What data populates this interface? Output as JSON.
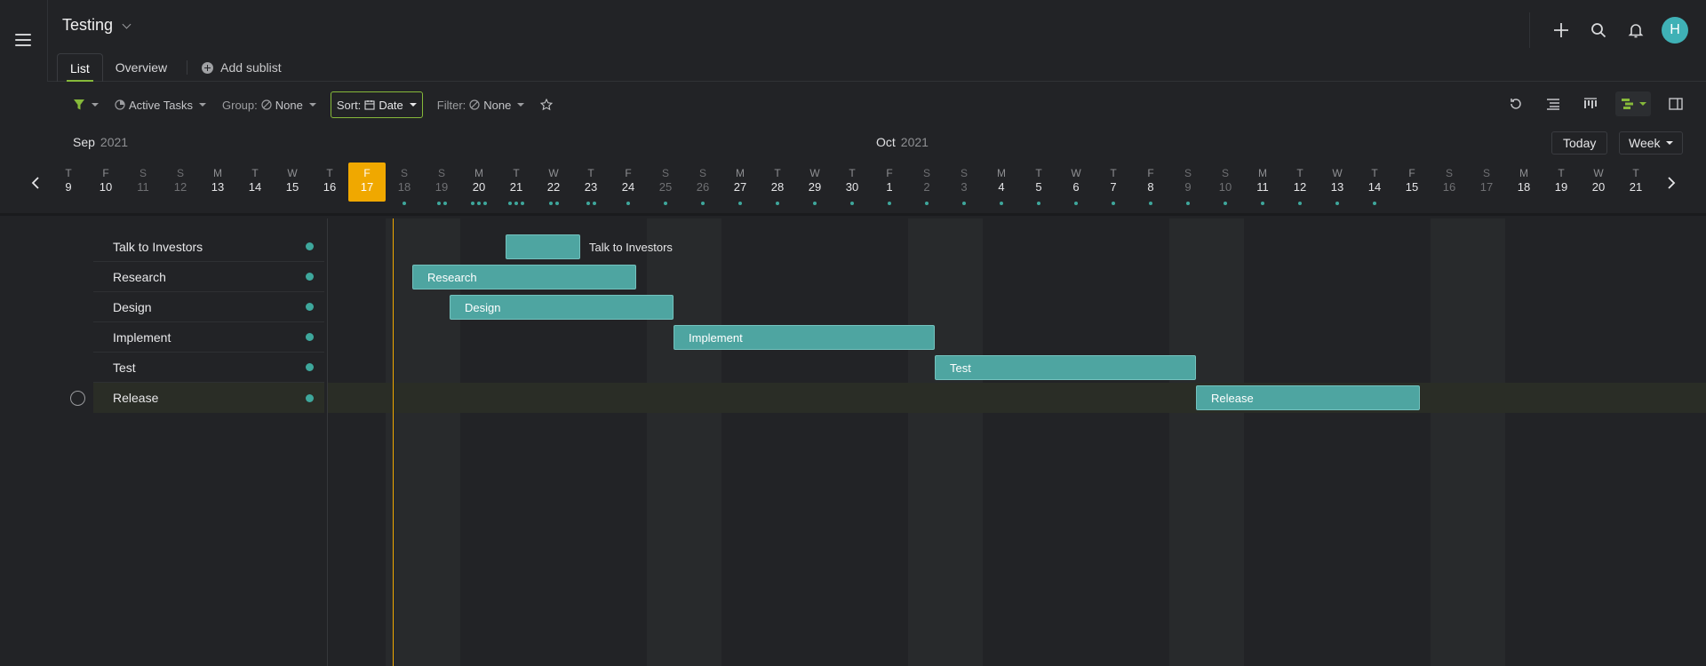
{
  "header": {
    "title": "Testing",
    "tabs": [
      {
        "label": "List",
        "active": true
      },
      {
        "label": "Overview",
        "active": false
      }
    ],
    "add_sublist": "Add sublist",
    "avatar_initial": "H"
  },
  "toolbar": {
    "status": "Active Tasks",
    "group_label": "Group:",
    "group_value": "None",
    "sort_label": "Sort:",
    "sort_value": "Date",
    "filter_label": "Filter:",
    "filter_value": "None"
  },
  "timeline": {
    "months": [
      {
        "name": "Sep",
        "year": "2021"
      },
      {
        "name": "Oct",
        "year": "2021"
      }
    ],
    "today_label": "Today",
    "scale_label": "Week",
    "days": [
      {
        "l": "T",
        "n": "9",
        "weekend": false,
        "dots": 0
      },
      {
        "l": "F",
        "n": "10",
        "weekend": false,
        "dots": 0
      },
      {
        "l": "S",
        "n": "11",
        "weekend": true,
        "dots": 0
      },
      {
        "l": "S",
        "n": "12",
        "weekend": true,
        "dots": 0
      },
      {
        "l": "M",
        "n": "13",
        "weekend": false,
        "dots": 0
      },
      {
        "l": "T",
        "n": "14",
        "weekend": false,
        "dots": 0
      },
      {
        "l": "W",
        "n": "15",
        "weekend": false,
        "dots": 0
      },
      {
        "l": "T",
        "n": "16",
        "weekend": false,
        "dots": 0
      },
      {
        "l": "F",
        "n": "17",
        "weekend": false,
        "dots": 0,
        "today": true
      },
      {
        "l": "S",
        "n": "18",
        "weekend": true,
        "dots": 1
      },
      {
        "l": "S",
        "n": "19",
        "weekend": true,
        "dots": 2
      },
      {
        "l": "M",
        "n": "20",
        "weekend": false,
        "dots": 3
      },
      {
        "l": "T",
        "n": "21",
        "weekend": false,
        "dots": 3
      },
      {
        "l": "W",
        "n": "22",
        "weekend": false,
        "dots": 2
      },
      {
        "l": "T",
        "n": "23",
        "weekend": false,
        "dots": 2
      },
      {
        "l": "F",
        "n": "24",
        "weekend": false,
        "dots": 1
      },
      {
        "l": "S",
        "n": "25",
        "weekend": true,
        "dots": 1
      },
      {
        "l": "S",
        "n": "26",
        "weekend": true,
        "dots": 1
      },
      {
        "l": "M",
        "n": "27",
        "weekend": false,
        "dots": 1
      },
      {
        "l": "T",
        "n": "28",
        "weekend": false,
        "dots": 1
      },
      {
        "l": "W",
        "n": "29",
        "weekend": false,
        "dots": 1
      },
      {
        "l": "T",
        "n": "30",
        "weekend": false,
        "dots": 1
      },
      {
        "l": "F",
        "n": "1",
        "weekend": false,
        "dots": 1
      },
      {
        "l": "S",
        "n": "2",
        "weekend": true,
        "dots": 1
      },
      {
        "l": "S",
        "n": "3",
        "weekend": true,
        "dots": 1
      },
      {
        "l": "M",
        "n": "4",
        "weekend": false,
        "dots": 1
      },
      {
        "l": "T",
        "n": "5",
        "weekend": false,
        "dots": 1
      },
      {
        "l": "W",
        "n": "6",
        "weekend": false,
        "dots": 1
      },
      {
        "l": "T",
        "n": "7",
        "weekend": false,
        "dots": 1
      },
      {
        "l": "F",
        "n": "8",
        "weekend": false,
        "dots": 1
      },
      {
        "l": "S",
        "n": "9",
        "weekend": true,
        "dots": 1
      },
      {
        "l": "S",
        "n": "10",
        "weekend": true,
        "dots": 1
      },
      {
        "l": "M",
        "n": "11",
        "weekend": false,
        "dots": 1
      },
      {
        "l": "T",
        "n": "12",
        "weekend": false,
        "dots": 1
      },
      {
        "l": "W",
        "n": "13",
        "weekend": false,
        "dots": 1
      },
      {
        "l": "T",
        "n": "14",
        "weekend": false,
        "dots": 1
      },
      {
        "l": "F",
        "n": "15",
        "weekend": false,
        "dots": 0
      },
      {
        "l": "S",
        "n": "16",
        "weekend": true,
        "dots": 0
      },
      {
        "l": "S",
        "n": "17",
        "weekend": true,
        "dots": 0
      },
      {
        "l": "M",
        "n": "18",
        "weekend": false,
        "dots": 0
      },
      {
        "l": "T",
        "n": "19",
        "weekend": false,
        "dots": 0
      },
      {
        "l": "W",
        "n": "20",
        "weekend": false,
        "dots": 0
      },
      {
        "l": "T",
        "n": "21",
        "weekend": false,
        "dots": 0
      }
    ]
  },
  "tasks": [
    {
      "name": "Talk to Investors",
      "start": "Sep 20",
      "end": "Sep 21",
      "label_outside": true
    },
    {
      "name": "Research",
      "start": "Sep 18",
      "end": "Sep 23",
      "label_outside": false
    },
    {
      "name": "Design",
      "start": "Sep 19",
      "end": "Sep 24",
      "label_outside": false
    },
    {
      "name": "Implement",
      "start": "Sep 25",
      "end": "Oct 1",
      "label_outside": false
    },
    {
      "name": "Test",
      "start": "Oct 2",
      "end": "Oct 8",
      "label_outside": false
    },
    {
      "name": "Release",
      "start": "Oct 9",
      "end": "Oct 14",
      "label_outside": false,
      "selected": true
    }
  ],
  "colors": {
    "accent_green": "#86b93a",
    "today": "#f0a800",
    "bar": "#4ea5a1",
    "avatar": "#3fb1b6"
  }
}
